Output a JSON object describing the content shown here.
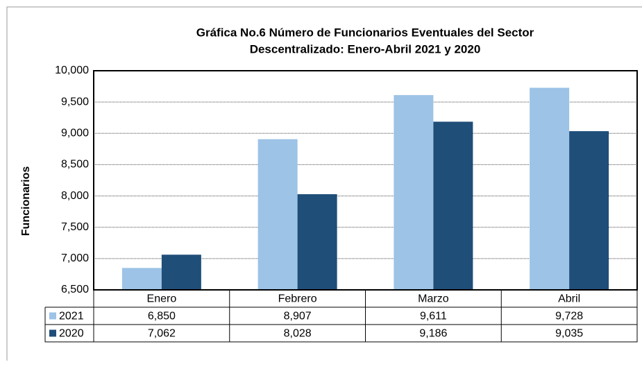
{
  "chart_data": {
    "type": "bar",
    "title": [
      "Gráfica No.6 Número de Funcionarios Eventuales del Sector",
      "Descentralizado: Enero-Abril 2021 y 2020"
    ],
    "y_label": "Funcionarios",
    "categories": [
      "Enero",
      "Febrero",
      "Marzo",
      "Abril"
    ],
    "series": [
      {
        "name": "2021",
        "color": "#9dc3e6",
        "values": [
          6850,
          8907,
          9611,
          9728
        ],
        "value_labels": [
          "6,850",
          "8,907",
          "9,611",
          "9,728"
        ]
      },
      {
        "name": "2020",
        "color": "#1f4e79",
        "values": [
          7062,
          8028,
          9186,
          9035
        ],
        "value_labels": [
          "7,062",
          "8,028",
          "9,186",
          "9,035"
        ]
      }
    ],
    "ylim": [
      6500,
      10000
    ],
    "yticks": [
      {
        "value": 6500,
        "label": "6,500"
      },
      {
        "value": 7000,
        "label": "7,000"
      },
      {
        "value": 7500,
        "label": "7,500"
      },
      {
        "value": 8000,
        "label": "8,000"
      },
      {
        "value": 8500,
        "label": "8,500"
      },
      {
        "value": 9000,
        "label": "9,000"
      },
      {
        "value": 9500,
        "label": "9,500"
      },
      {
        "value": 10000,
        "label": "10,000"
      }
    ],
    "grid": true
  }
}
